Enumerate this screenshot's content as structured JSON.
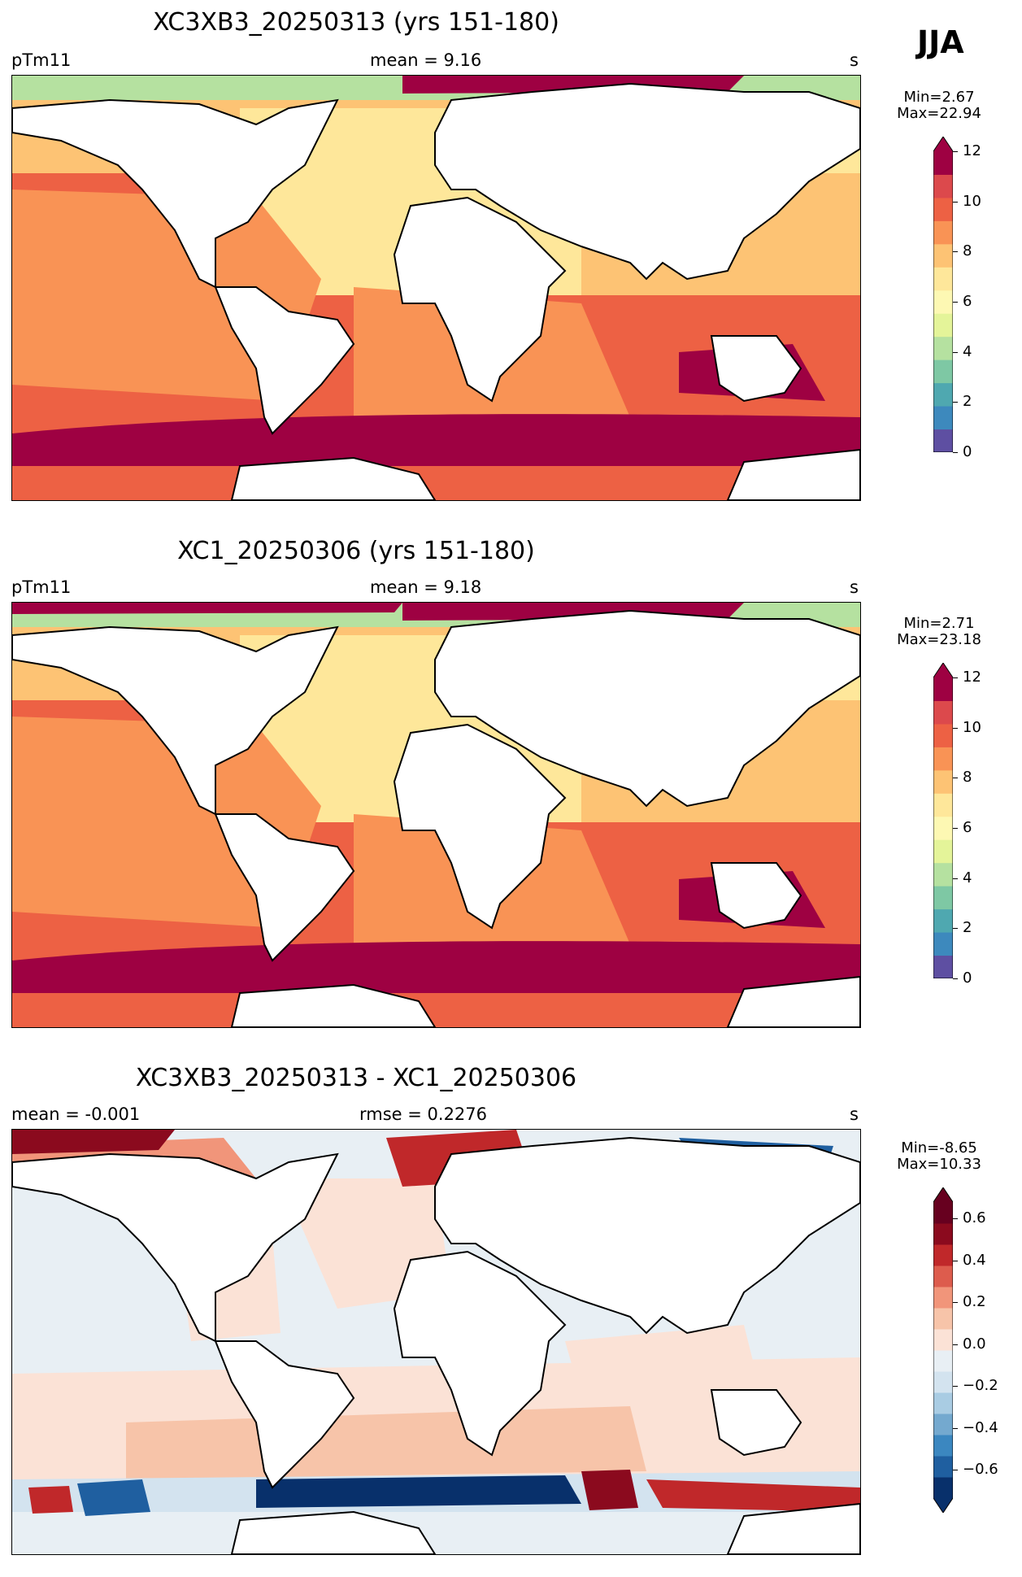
{
  "season": "JJA",
  "panels": [
    {
      "title": "XC3XB3_20250313 (yrs 151-180)",
      "left_label": "pTm11",
      "center_label": "mean = 9.16",
      "right_label": "s",
      "min_label": "Min=2.67",
      "max_label": "Max=22.94",
      "colorbar_ticks": [
        "0",
        "2",
        "4",
        "6",
        "8",
        "10",
        "12"
      ],
      "colormap": "Spectral_r",
      "colorbar_colors": [
        "#5e4fa2",
        "#3d89bd",
        "#4fa8b0",
        "#7ec8a4",
        "#b5e1a0",
        "#e4f499",
        "#fdf8b3",
        "#fee79a",
        "#fdc374",
        "#f99355",
        "#ed6144",
        "#dc494c",
        "#9e0142"
      ]
    },
    {
      "title": "XC1_20250306 (yrs 151-180)",
      "left_label": "pTm11",
      "center_label": "mean = 9.18",
      "right_label": "s",
      "min_label": "Min=2.71",
      "max_label": "Max=23.18",
      "colorbar_ticks": [
        "0",
        "2",
        "4",
        "6",
        "8",
        "10",
        "12"
      ],
      "colormap": "Spectral_r",
      "colorbar_colors": [
        "#5e4fa2",
        "#3d89bd",
        "#4fa8b0",
        "#7ec8a4",
        "#b5e1a0",
        "#e4f499",
        "#fdf8b3",
        "#fee79a",
        "#fdc374",
        "#f99355",
        "#ed6144",
        "#dc494c",
        "#9e0142"
      ]
    },
    {
      "title": "XC3XB3_20250313 - XC1_20250306",
      "left_label": "mean = -0.001",
      "center_label": "rmse = 0.2276",
      "right_label": "s",
      "min_label": "Min=-8.65",
      "max_label": "Max=10.33",
      "colorbar_ticks": [
        "0.6",
        "0.4",
        "0.2",
        "0.0",
        "−0.2",
        "−0.4",
        "−0.6"
      ],
      "colormap": "RdBu_r",
      "colorbar_colors": [
        "#08306b",
        "#1f5fa0",
        "#3b87c0",
        "#74a9cf",
        "#a9cce3",
        "#d3e3ef",
        "#e8eff4",
        "#fbe2d6",
        "#f7c4a9",
        "#f1957a",
        "#dd5c4d",
        "#c0282a",
        "#8b0a1e",
        "#67001f"
      ]
    }
  ],
  "colors": {
    "land": "#ffffff",
    "coast": "#000000",
    "ocean_top": "#ed6144",
    "ocean_mid": "#f99355",
    "ocean_light": "#fdc374",
    "ocean_pale": "#fee79a",
    "ocean_green": "#b5e1a0",
    "ocean_south": "#9e0142",
    "diff_base": "#e8eff4",
    "diff_pos": "#fbe2d6",
    "diff_pos2": "#f7c4a9",
    "diff_red": "#c0282a",
    "diff_blue": "#1f5fa0"
  }
}
